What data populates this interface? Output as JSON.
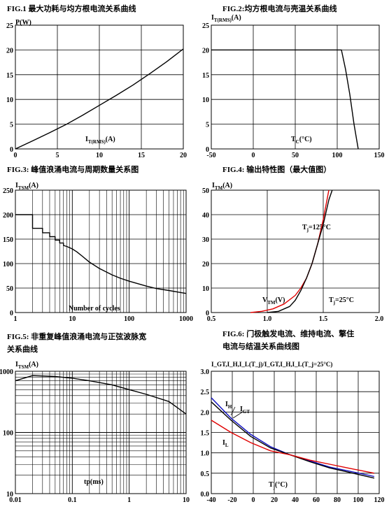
{
  "charts": [
    {
      "title": "FIG.1  最大功耗与均方根电流关系曲线",
      "ylabel": "P(W)",
      "xlabel_main": "I",
      "xlabel_sub": "T(RMS)",
      "xlabel_unit": "(A)"
    },
    {
      "title": "FIG.2:均方根电流与壳温关系曲线",
      "ylabel_main": "I",
      "ylabel_sub": "T(RMS)",
      "ylabel_unit": "(A)",
      "xlabel_main": "T",
      "xlabel_sub": "C",
      "xlabel_unit": "(°C)"
    },
    {
      "title": "FIG.3:  峰值浪涌电流与周期数量关系图",
      "ylabel_main": "I",
      "ylabel_sub": "TSM",
      "ylabel_unit": "(A)",
      "xlabel": "Number of cycles"
    },
    {
      "title": "FIG.4:  输出特性图（最大值图）",
      "ylabel_main": "I",
      "ylabel_sub": "TM",
      "ylabel_unit": "(A)",
      "xlabel_main": "V",
      "xlabel_sub": "TM",
      "xlabel_unit": "(V)",
      "label_125": "T",
      "label_125_sub": "j",
      "label_125_val": "=125°C",
      "label_25": "T",
      "label_25_sub": "j",
      "label_25_val": "=25°C"
    },
    {
      "title": "FIG.5:  非重复峰值浪涌电流与正弦波脉宽",
      "title2": "关系曲线",
      "ylabel_main": "I",
      "ylabel_sub": "TSM",
      "ylabel_unit": "(A)",
      "xlabel": "tp(ms)"
    },
    {
      "title": "FIG.6:  门极触发电流、维持电流、擎住",
      "title2": "电流与结温关系曲线图",
      "ylabel": "I_GT,I_H,I_L(T_j)/I_GT,I_H,I_L(T_j=25°C)",
      "xlabel_main": "T",
      "xlabel_sub": "j",
      "xlabel_unit": "(°C)",
      "lab_H": "I",
      "lab_H_sub": "H",
      "lab_GT": "I",
      "lab_GT_sub": "GT",
      "lab_L": "I",
      "lab_L_sub": "L"
    }
  ],
  "chart_data": [
    {
      "type": "line",
      "xlim": [
        0,
        20
      ],
      "ylim": [
        0,
        25
      ],
      "xticks": [
        "0",
        "5",
        "10",
        "15",
        "20"
      ],
      "yticks": [
        "0",
        "5",
        "10",
        "15",
        "20",
        "25"
      ],
      "series": [
        {
          "x": [
            0,
            2,
            4,
            6,
            8,
            10,
            12,
            14,
            16,
            18,
            20
          ],
          "y": [
            0,
            1.6,
            3.2,
            4.9,
            6.8,
            8.8,
            10.8,
            12.9,
            15.2,
            17.6,
            20.2
          ]
        }
      ]
    },
    {
      "type": "line",
      "xlim": [
        -50,
        150
      ],
      "ylim": [
        0,
        25
      ],
      "xticks": [
        "-50",
        "0",
        "50",
        "100",
        "150"
      ],
      "yticks": [
        "0",
        "5",
        "10",
        "15",
        "20",
        "25"
      ],
      "series": [
        {
          "x": [
            -50,
            105,
            110,
            115,
            120,
            125
          ],
          "y": [
            20,
            20,
            16,
            11,
            5,
            0
          ]
        }
      ]
    },
    {
      "type": "line",
      "xscale": "log",
      "xlim": [
        1,
        1000
      ],
      "ylim": [
        0,
        250
      ],
      "xticks": [
        "1",
        "10",
        "100",
        "1000"
      ],
      "yticks": [
        "0",
        "50",
        "100",
        "150",
        "200",
        "250"
      ],
      "series": [
        {
          "x": [
            1,
            2,
            2,
            3,
            3,
            4,
            4,
            5,
            5,
            6,
            6,
            7,
            7,
            8,
            10,
            12,
            15,
            20,
            30,
            50,
            70,
            100,
            200,
            300,
            500,
            700,
            1000
          ],
          "y": [
            200,
            200,
            172,
            172,
            163,
            163,
            155,
            155,
            148,
            148,
            142,
            142,
            137,
            135,
            130,
            124,
            115,
            103,
            90,
            77,
            70,
            64,
            54,
            49,
            45,
            42,
            39
          ]
        }
      ]
    },
    {
      "type": "line",
      "xlim": [
        0.5,
        2
      ],
      "ylim": [
        0,
        50
      ],
      "xticks": [
        "0.5",
        "1.0",
        "1.5",
        "2.0"
      ],
      "yticks": [
        "0",
        "10",
        "20",
        "30",
        "40",
        "50"
      ],
      "series": [
        {
          "name": "Tj=125°C",
          "color": "#e00000",
          "x": [
            0.85,
            0.95,
            1.05,
            1.15,
            1.25,
            1.3,
            1.35,
            1.4,
            1.45,
            1.5,
            1.55
          ],
          "y": [
            0,
            0.5,
            1.5,
            3.5,
            7,
            10,
            14,
            20,
            28,
            38,
            50
          ]
        },
        {
          "name": "Tj=25°C",
          "color": "#000000",
          "x": [
            1.0,
            1.1,
            1.2,
            1.25,
            1.3,
            1.35,
            1.4,
            1.45,
            1.5,
            1.55,
            1.58
          ],
          "y": [
            0,
            0.5,
            2.5,
            5,
            9,
            14,
            20,
            28,
            36,
            46,
            50
          ]
        }
      ]
    },
    {
      "type": "line",
      "xscale": "log",
      "yscale": "log",
      "xlim": [
        0.01,
        10
      ],
      "ylim": [
        10,
        1000
      ],
      "xticks": [
        "0.01",
        "0.1",
        "1",
        "10"
      ],
      "yticks": [
        "10",
        "100",
        "1000"
      ],
      "series": [
        {
          "x": [
            0.01,
            0.02,
            0.05,
            0.1,
            0.2,
            0.5,
            1,
            2,
            5,
            10
          ],
          "y": [
            700,
            850,
            820,
            770,
            700,
            600,
            500,
            420,
            320,
            200
          ]
        }
      ]
    },
    {
      "type": "line",
      "xlim": [
        -40,
        130
      ],
      "ylim": [
        0,
        3
      ],
      "xticks": [
        "-40",
        "-20",
        "0",
        "20",
        "40",
        "60",
        "80",
        "100",
        "120"
      ],
      "yticks": [
        "0.0",
        "0.5",
        "1.0",
        "1.5",
        "2.0",
        "2.5",
        "3.0"
      ],
      "series": [
        {
          "name": "IH",
          "color": "#1010c0",
          "x": [
            -40,
            -20,
            0,
            20,
            40,
            60,
            80,
            100,
            125
          ],
          "y": [
            2.35,
            1.85,
            1.45,
            1.15,
            0.95,
            0.8,
            0.65,
            0.55,
            0.42
          ]
        },
        {
          "name": "IGT",
          "color": "#000000",
          "x": [
            -40,
            -20,
            0,
            20,
            40,
            60,
            80,
            100,
            125
          ],
          "y": [
            2.25,
            1.8,
            1.4,
            1.12,
            0.95,
            0.78,
            0.63,
            0.52,
            0.38
          ]
        },
        {
          "name": "IL",
          "color": "#e00000",
          "x": [
            -40,
            -20,
            0,
            20,
            40,
            60,
            80,
            100,
            125
          ],
          "y": [
            1.8,
            1.5,
            1.25,
            1.05,
            0.95,
            0.82,
            0.72,
            0.62,
            0.5
          ]
        }
      ]
    }
  ]
}
